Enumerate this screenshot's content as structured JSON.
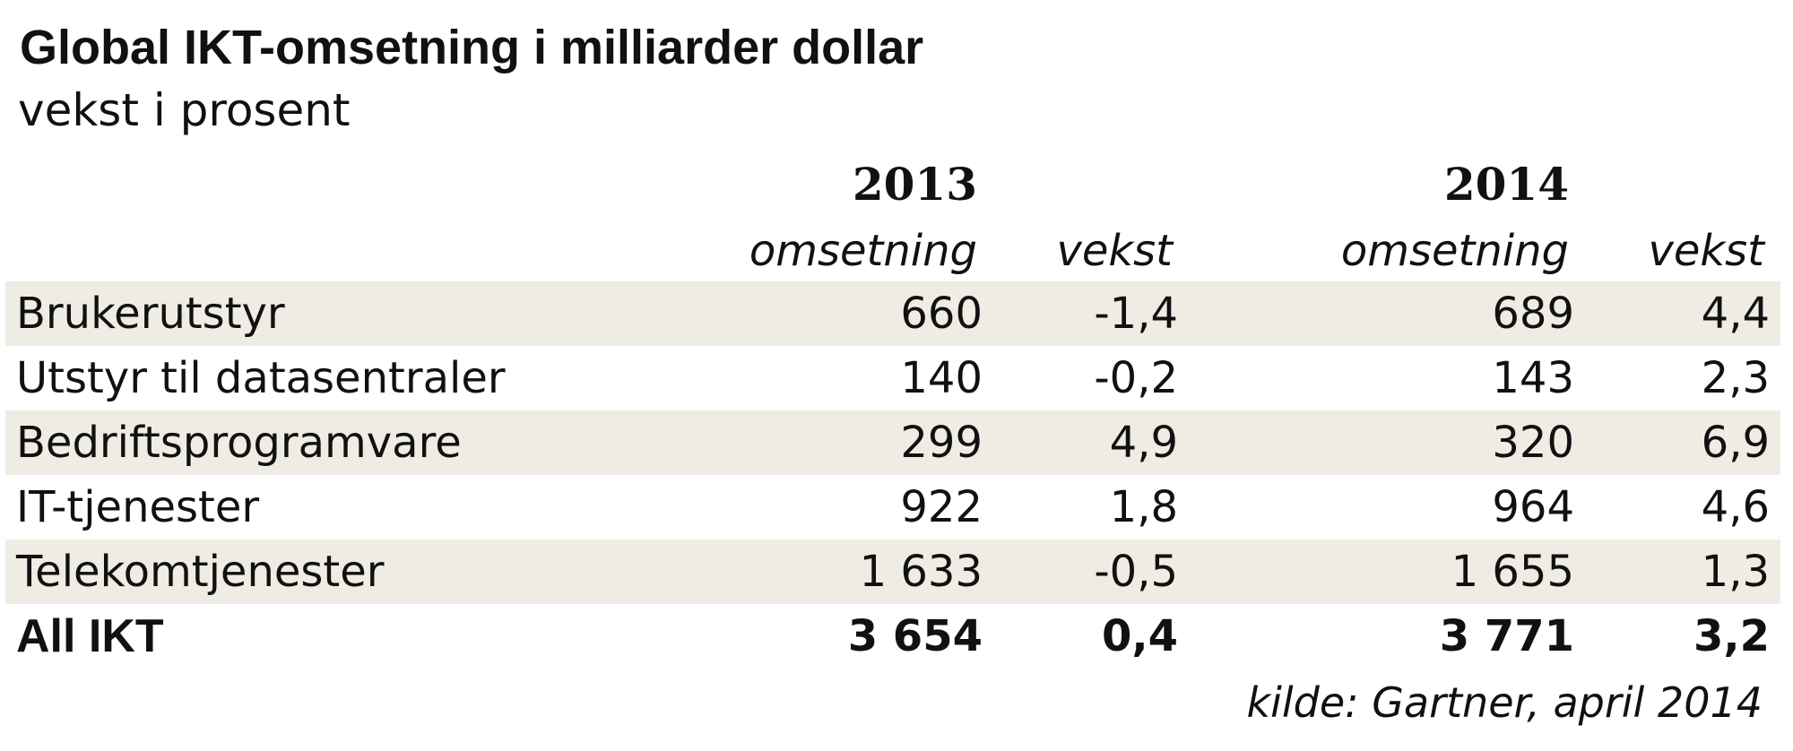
{
  "chart_data": {
    "type": "table",
    "title": "Global IKT-omsetning i milliarder dollar",
    "subtitle": "vekst i prosent",
    "years": [
      "2013",
      "2014"
    ],
    "column_headers": [
      "omsetning",
      "vekst",
      "omsetning",
      "vekst"
    ],
    "rows": [
      {
        "label": "Brukerutstyr",
        "values": [
          "660",
          "-1,4",
          "689",
          "4,4"
        ]
      },
      {
        "label": "Utstyr til datasentraler",
        "values": [
          "140",
          "-0,2",
          "143",
          "2,3"
        ]
      },
      {
        "label": "Bedriftsprogramvare",
        "values": [
          "299",
          "4,9",
          "320",
          "6,9"
        ]
      },
      {
        "label": "IT-tjenester",
        "values": [
          "922",
          "1,8",
          "964",
          "4,6"
        ]
      },
      {
        "label": "Telekomtjenester",
        "values": [
          "1 633",
          "-0,5",
          "1 655",
          "1,3"
        ]
      }
    ],
    "total": {
      "label": "All IKT",
      "values": [
        "3 654",
        "0,4",
        "3 771",
        "3,2"
      ]
    },
    "source": "kilde: Gartner, april 2014",
    "row_shading_color": "#efece3"
  }
}
